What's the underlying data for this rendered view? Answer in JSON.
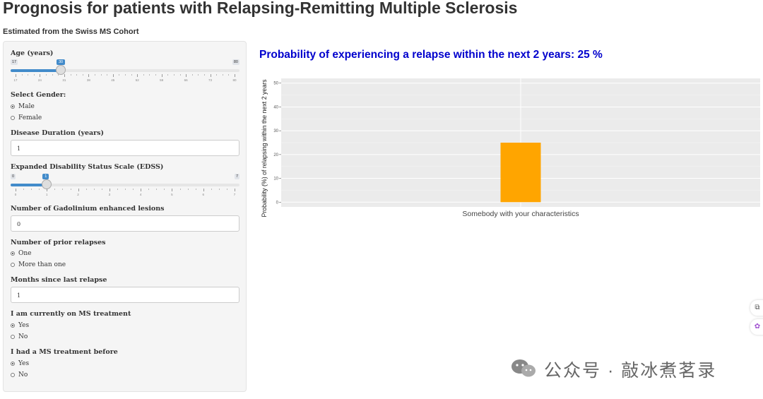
{
  "header": {
    "title": "Prognosis for patients with Relapsing-Remitting Multiple Sclerosis",
    "subtitle": "Estimated from the Swiss MS Cohort"
  },
  "controls": {
    "age": {
      "label": "Age (years)",
      "min": 17,
      "max": 80,
      "value": 30,
      "min_label": "17",
      "max_label": "80",
      "value_label": "30",
      "ticks": [
        "17",
        "24",
        "31",
        "38",
        "45",
        "52",
        "59",
        "66",
        "73",
        "80"
      ]
    },
    "gender": {
      "label": "Select Gender:",
      "options": [
        "Male",
        "Female"
      ],
      "selected": "Male"
    },
    "disease_duration": {
      "label": "Disease Duration (years)",
      "value": "1"
    },
    "edss": {
      "label": "Expanded Disability Status Scale (EDSS)",
      "min": 0,
      "max": 7,
      "value": 1,
      "min_label": "0",
      "max_label": "7",
      "value_label": "1",
      "ticks": [
        "0",
        "1",
        "2",
        "3",
        "4",
        "5",
        "6",
        "7"
      ]
    },
    "gad_lesions": {
      "label": "Number of Gadolinium enhanced lesions",
      "value": "0"
    },
    "prior_relapses": {
      "label": "Number of prior relapses",
      "options": [
        "One",
        "More than one"
      ],
      "selected": "One"
    },
    "months_since": {
      "label": "Months since last relapse",
      "value": "1"
    },
    "on_treatment": {
      "label": "I am currently on MS treatment",
      "options": [
        "Yes",
        "No"
      ],
      "selected": "Yes"
    },
    "prior_treatment": {
      "label": "I had a MS treatment before",
      "options": [
        "Yes",
        "No"
      ],
      "selected": "Yes"
    }
  },
  "result": {
    "title": "Probability of experiencing a relapse within the next 2 years: 25 %"
  },
  "chart_data": {
    "type": "bar",
    "categories": [
      "Somebody with your characteristics"
    ],
    "values": [
      25
    ],
    "title": "",
    "xlabel": "",
    "ylabel": "Probability (%) of relapsing within the next 2 years",
    "ylim": [
      -2,
      52
    ],
    "yticks": [
      0,
      10,
      20,
      30,
      40,
      50
    ],
    "ytick_labels": [
      "0",
      "10",
      "20",
      "30",
      "40",
      "50"
    ],
    "bar_color": "#FFA500",
    "panel_color": "#EBEBEB",
    "grid": true
  },
  "watermark": {
    "text": "公众号 · 敲冰煮茗录"
  },
  "colors": {
    "accent": "#428bca",
    "result_title": "#0000cd",
    "bar": "#FFA500"
  }
}
